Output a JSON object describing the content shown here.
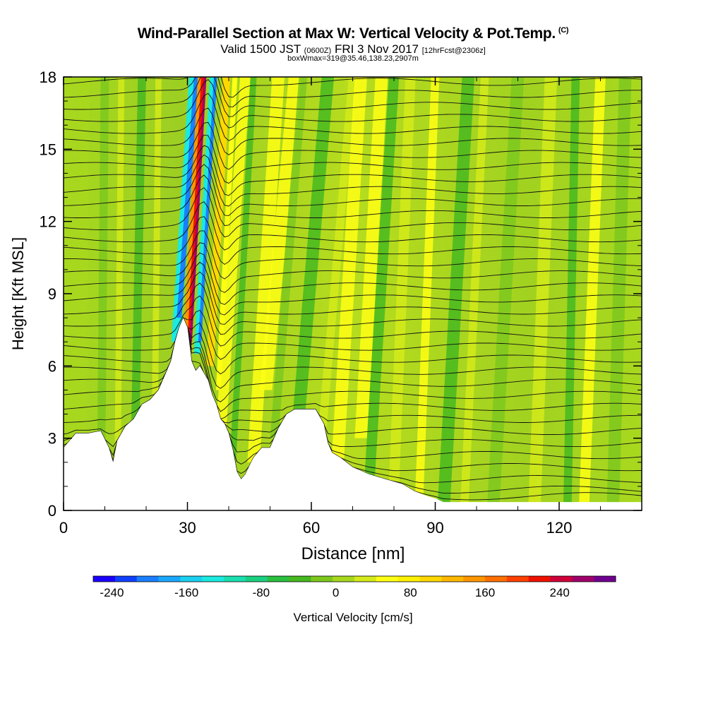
{
  "header": {
    "title": "Wind-Parallel Section at Max W: Vertical Velocity & Pot.Temp.",
    "copyright": "(C)",
    "valid_prefix": "Valid 1500 JST",
    "utc": "(0600Z)",
    "valid_date": "FRI 3 Nov 2017",
    "forecast": "[12hrFcst@2306z]",
    "box_info": "boxWmax=319@35.46,138.23,2907m"
  },
  "chart_data": {
    "type": "heatmap",
    "description_fields": "vertical velocity shaded, potential temperature contoured",
    "xlabel": "Distance [nm]",
    "ylabel": "Height [Kft MSL]",
    "xlim": [
      0,
      140
    ],
    "ylim": [
      0,
      18
    ],
    "x_ticks": [
      0,
      30,
      60,
      90,
      120
    ],
    "y_ticks": [
      0,
      3,
      6,
      9,
      12,
      15,
      18
    ],
    "terrain_height_kft": [
      [
        0,
        2.6
      ],
      [
        3,
        3.2
      ],
      [
        6,
        3.2
      ],
      [
        9,
        3.3
      ],
      [
        11,
        2.6
      ],
      [
        12,
        2.0
      ],
      [
        13,
        2.9
      ],
      [
        15,
        3.5
      ],
      [
        17,
        3.8
      ],
      [
        19,
        4.4
      ],
      [
        21,
        4.6
      ],
      [
        23,
        5.0
      ],
      [
        25,
        5.8
      ],
      [
        26,
        6.2
      ],
      [
        27,
        7.0
      ],
      [
        28,
        7.6
      ],
      [
        29,
        8.0
      ],
      [
        30,
        7.6
      ],
      [
        31,
        6.2
      ],
      [
        32,
        5.8
      ],
      [
        33,
        6.0
      ],
      [
        35,
        5.4
      ],
      [
        36,
        4.8
      ],
      [
        37,
        4.4
      ],
      [
        38,
        3.8
      ],
      [
        39,
        3.6
      ],
      [
        40,
        3.2
      ],
      [
        41,
        2.5
      ],
      [
        42,
        1.6
      ],
      [
        43,
        1.3
      ],
      [
        44,
        1.5
      ],
      [
        46,
        2.2
      ],
      [
        48,
        2.6
      ],
      [
        50,
        2.6
      ],
      [
        52,
        3.4
      ],
      [
        54,
        4.0
      ],
      [
        56,
        4.2
      ],
      [
        59,
        4.2
      ],
      [
        61,
        4.2
      ],
      [
        63,
        3.6
      ],
      [
        64,
        2.8
      ],
      [
        65,
        2.4
      ],
      [
        67,
        2.2
      ],
      [
        70,
        1.8
      ],
      [
        74,
        1.5
      ],
      [
        78,
        1.3
      ],
      [
        82,
        1.1
      ],
      [
        85,
        0.8
      ],
      [
        88,
        0.6
      ],
      [
        90,
        0.5
      ],
      [
        92,
        0.35
      ],
      [
        95,
        0.35
      ],
      [
        100,
        0.35
      ],
      [
        140,
        0.35
      ]
    ],
    "max_updraft_x_nm": 31.5,
    "max_downdraft_x_nm": 29,
    "colorbar": {
      "label": "Vertical Velocity [cm/s]",
      "tick_labels": [
        "-240",
        "-160",
        "-80",
        "0",
        "80",
        "160",
        "240"
      ],
      "colors": [
        "#1a00ff",
        "#1040ff",
        "#1a7fff",
        "#1aa8ff",
        "#1ad0f0",
        "#1aeae0",
        "#1ae0b0",
        "#1ad080",
        "#2ac040",
        "#46b820",
        "#7ec81e",
        "#a8d81e",
        "#d4ea1a",
        "#ffff14",
        "#fff000",
        "#ffd800",
        "#ffb800",
        "#ff9600",
        "#ff7000",
        "#ff4000",
        "#f01000",
        "#d0003a",
        "#a0006a",
        "#700090"
      ]
    }
  }
}
